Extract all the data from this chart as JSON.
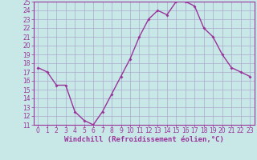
{
  "x": [
    0,
    1,
    2,
    3,
    4,
    5,
    6,
    7,
    8,
    9,
    10,
    11,
    12,
    13,
    14,
    15,
    16,
    17,
    18,
    19,
    20,
    21,
    22,
    23
  ],
  "y": [
    17.5,
    17,
    15.5,
    15.5,
    12.5,
    11.5,
    11,
    12.5,
    14.5,
    16.5,
    18.5,
    21,
    23,
    24,
    23.5,
    25,
    25,
    24.5,
    22,
    21,
    19,
    17.5,
    17,
    16.5
  ],
  "line_color": "#993399",
  "marker": "D",
  "marker_size": 2.0,
  "bg_color": "#c8e8e8",
  "grid_color": "#aaaacc",
  "xlabel": "Windchill (Refroidissement éolien,°C)",
  "xlabel_color": "#993399",
  "xlabel_fontsize": 6.5,
  "tick_color": "#993399",
  "tick_fontsize": 5.5,
  "ylim": [
    11,
    25
  ],
  "xlim": [
    -0.5,
    23.5
  ],
  "yticks": [
    11,
    12,
    13,
    14,
    15,
    16,
    17,
    18,
    19,
    20,
    21,
    22,
    23,
    24,
    25
  ],
  "xticks": [
    0,
    1,
    2,
    3,
    4,
    5,
    6,
    7,
    8,
    9,
    10,
    11,
    12,
    13,
    14,
    15,
    16,
    17,
    18,
    19,
    20,
    21,
    22,
    23
  ],
  "spine_color": "#993399",
  "linewidth": 1.0
}
